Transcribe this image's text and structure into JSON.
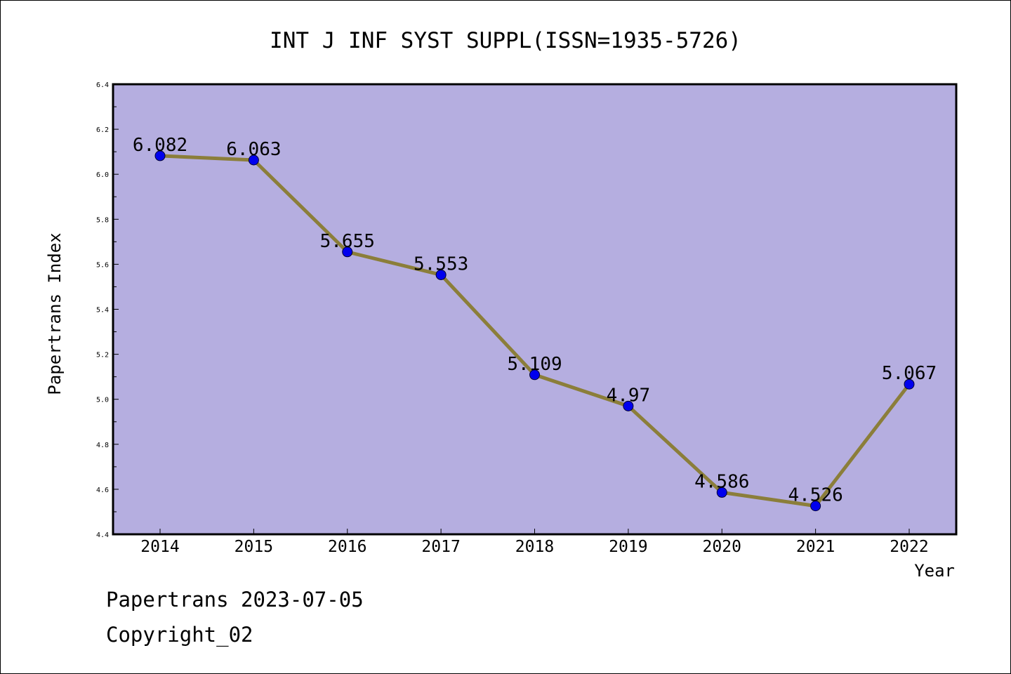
{
  "chart_data": {
    "type": "line",
    "title": "INT J INF SYST SUPPL(ISSN=1935-5726)",
    "xlabel": "Year",
    "ylabel": "Papertrans Index",
    "categories": [
      "2014",
      "2015",
      "2016",
      "2017",
      "2018",
      "2019",
      "2020",
      "2021",
      "2022"
    ],
    "series": [
      {
        "values": [
          6.082,
          6.063,
          5.655,
          5.553,
          5.109,
          4.97,
          4.586,
          4.526,
          5.067
        ],
        "labels": [
          "6.082",
          "6.063",
          "5.655",
          "5.553",
          "5.109",
          "4.97",
          "4.586",
          "4.526",
          "5.067"
        ]
      }
    ],
    "ylim": [
      4.4,
      6.4
    ],
    "yticks": [
      "4.4",
      "4.6",
      "4.8",
      "5.0",
      "5.2",
      "5.4",
      "5.6",
      "5.8",
      "6.0",
      "6.2",
      "6.4"
    ],
    "grid": false,
    "colors": {
      "plot_background": "#b5aee0",
      "line": "#8b7e3a",
      "marker": "#0000ee"
    }
  },
  "footer": {
    "source": "Papertrans 2023-07-05",
    "copyright": "Copyright_02"
  }
}
